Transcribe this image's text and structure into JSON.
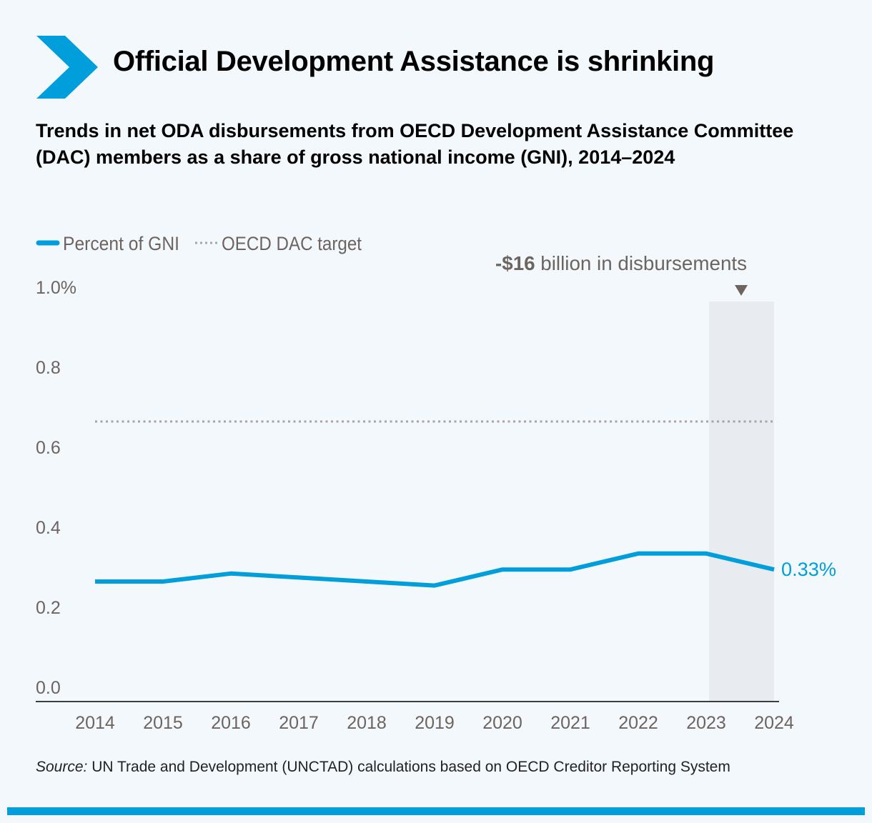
{
  "title": "Official Development Assistance is shrinking",
  "subtitle": "Trends in net ODA disbursements from OECD Development Assistance Committee (DAC) members as a share of gross national income (GNI), 2014–2024",
  "source_label": "Source:",
  "source_text": " UN Trade and Development (UNCTAD) calculations based on OECD Creditor Reporting System",
  "colors": {
    "accent": "#009edb",
    "target": "#a8a4a2",
    "highlight": "#e8ebef",
    "text": "#6d6460"
  },
  "chart_data": {
    "type": "line",
    "title": "Official Development Assistance is shrinking",
    "xlabel": "",
    "ylabel": "Percent of GNI",
    "x": [
      2014,
      2015,
      2016,
      2017,
      2018,
      2019,
      2020,
      2021,
      2022,
      2023,
      2024
    ],
    "x_tick_labels": [
      "2014",
      "2015",
      "2016",
      "2017",
      "2018",
      "2019",
      "2020",
      "2021",
      "2022",
      "2023",
      "2024"
    ],
    "y_tick_labels": [
      "0.0",
      "0.2",
      "0.4",
      "0.6",
      "0.8",
      "1.0%"
    ],
    "y_ticks": [
      0,
      0.2,
      0.4,
      0.6,
      0.8,
      1.0
    ],
    "ylim": [
      0,
      1.0
    ],
    "legend": [
      "Percent of GNI",
      "OECD DAC target"
    ],
    "legend_position": "top-left",
    "series": [
      {
        "name": "Percent of GNI",
        "values": [
          0.3,
          0.3,
          0.32,
          0.31,
          0.3,
          0.29,
          0.33,
          0.33,
          0.37,
          0.37,
          0.33
        ]
      },
      {
        "name": "OECD DAC target",
        "values": [
          0.7,
          0.7,
          0.7,
          0.7,
          0.7,
          0.7,
          0.7,
          0.7,
          0.7,
          0.7,
          0.7
        ]
      }
    ],
    "end_label": "0.33%",
    "highlight_range": [
      2023,
      2024
    ],
    "annotation": {
      "bold": "-$16",
      "text": " billion in disbursements"
    }
  }
}
